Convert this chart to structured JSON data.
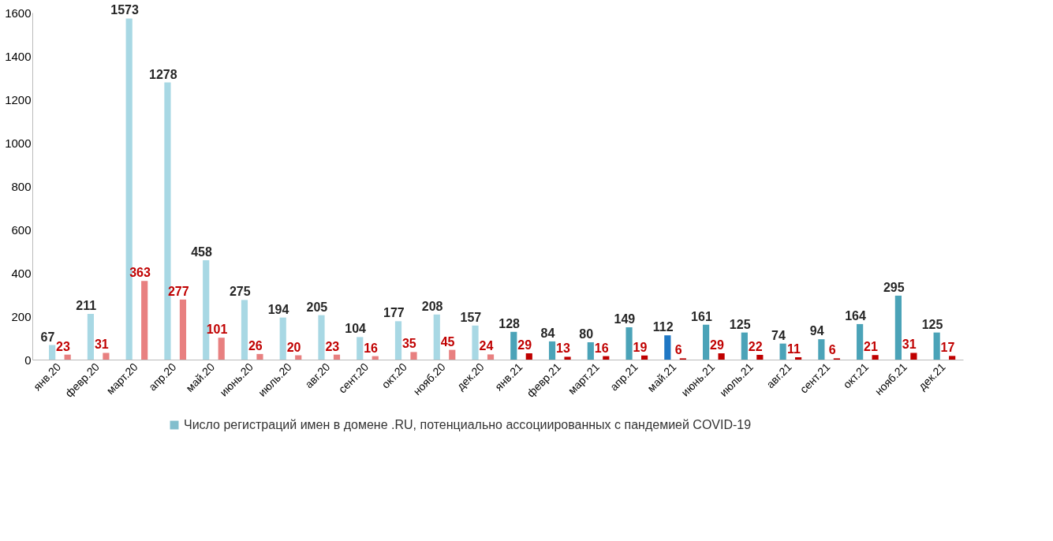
{
  "chart_data": {
    "type": "bar",
    "categories": [
      "янв.20",
      "февр.20",
      "март.20",
      "апр.20",
      "май.20",
      "июнь.20",
      "июль.20",
      "авг.20",
      "сент.20",
      "окт.20",
      "нояб.20",
      "дек.20",
      "янв.21",
      "февр.21",
      "март.21",
      "апр.21",
      "май.21",
      "июнь.21",
      "июль.21",
      "авг.21",
      "сент.21",
      "окт.21",
      "нояб.21",
      "дек.21"
    ],
    "series": [
      {
        "name": "Число регистраций имен в домене .RU, потенциально ассоциированных с пандемией COVID-19",
        "color": "#4ba3b8",
        "colors": [
          "#a8d8e4",
          "#a8d8e4",
          "#a8d8e4",
          "#a8d8e4",
          "#a8d8e4",
          "#a8d8e4",
          "#a8d8e4",
          "#a8d8e4",
          "#a8d8e4",
          "#a8d8e4",
          "#a8d8e4",
          "#a8d8e4",
          "#4ba3b8",
          "#4ba3b8",
          "#4ba3b8",
          "#4ba3b8",
          "#1f77c4",
          "#4ba3b8",
          "#4ba3b8",
          "#4ba3b8",
          "#4ba3b8",
          "#4ba3b8",
          "#4ba3b8",
          "#4ba3b8"
        ],
        "values": [
          67,
          211,
          1573,
          1278,
          458,
          275,
          194,
          205,
          104,
          177,
          208,
          157,
          128,
          84,
          80,
          149,
          112,
          161,
          125,
          74,
          94,
          164,
          295,
          125
        ]
      },
      {
        "colors": [
          "#e88080",
          "#e88080",
          "#e88080",
          "#e88080",
          "#e88080",
          "#e88080",
          "#e88080",
          "#e88080",
          "#e88080",
          "#e88080",
          "#e88080",
          "#e88080",
          "#c00000",
          "#c00000",
          "#c00000",
          "#c00000",
          "#c00000",
          "#c00000",
          "#c00000",
          "#c00000",
          "#c00000",
          "#c00000",
          "#c00000",
          "#c00000"
        ],
        "values": [
          23,
          31,
          363,
          277,
          101,
          26,
          20,
          23,
          16,
          35,
          45,
          24,
          29,
          13,
          16,
          19,
          6,
          29,
          22,
          11,
          6,
          21,
          31,
          17
        ]
      }
    ],
    "ylim": [
      0,
      1600
    ],
    "yticks": [
      0,
      200,
      400,
      600,
      800,
      1000,
      1200,
      1400,
      1600
    ],
    "grid": false,
    "data_labels": true,
    "legend": "bottom"
  }
}
